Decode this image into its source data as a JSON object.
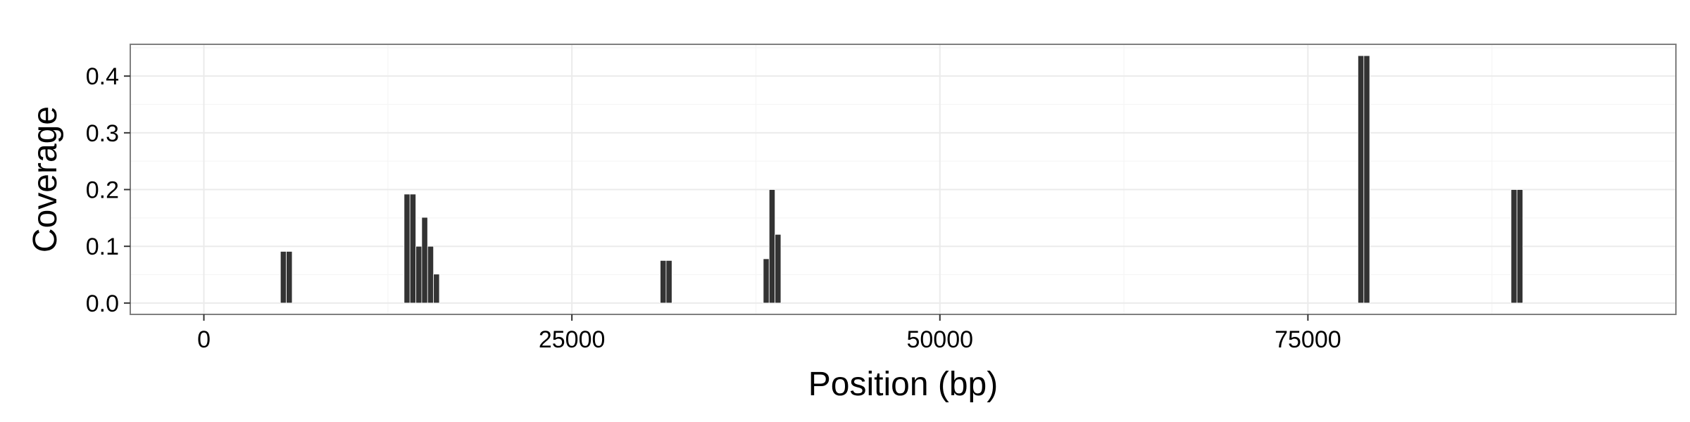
{
  "chart_data": {
    "type": "bar",
    "title": "",
    "xlabel": "Position (bp)",
    "ylabel": "Coverage",
    "xlim": [
      -5000,
      100000
    ],
    "ylim": [
      -0.02,
      0.456
    ],
    "x_ticks": [
      {
        "value": 0,
        "label": "0"
      },
      {
        "value": 25000,
        "label": "25000"
      },
      {
        "value": 50000,
        "label": "50000"
      },
      {
        "value": 75000,
        "label": "75000"
      }
    ],
    "y_ticks": [
      {
        "value": 0.0,
        "label": "0.0"
      },
      {
        "value": 0.1,
        "label": "0.1"
      },
      {
        "value": 0.2,
        "label": "0.2"
      },
      {
        "value": 0.3,
        "label": "0.3"
      },
      {
        "value": 0.4,
        "label": "0.4"
      }
    ],
    "grid": true,
    "bar_color": "#333333",
    "panel_background": "#ffffff",
    "grid_color": "#ebebeb",
    "bin_width": 400,
    "bars": [
      {
        "x": 5400,
        "y": 0.091
      },
      {
        "x": 5800,
        "y": 0.091
      },
      {
        "x": 13800,
        "y": 0.192
      },
      {
        "x": 14200,
        "y": 0.192
      },
      {
        "x": 14600,
        "y": 0.1
      },
      {
        "x": 15000,
        "y": 0.151
      },
      {
        "x": 15400,
        "y": 0.1
      },
      {
        "x": 15800,
        "y": 0.051
      },
      {
        "x": 31200,
        "y": 0.075
      },
      {
        "x": 31600,
        "y": 0.075
      },
      {
        "x": 38200,
        "y": 0.078
      },
      {
        "x": 38600,
        "y": 0.2
      },
      {
        "x": 39000,
        "y": 0.121
      },
      {
        "x": 78600,
        "y": 0.436
      },
      {
        "x": 79000,
        "y": 0.436
      },
      {
        "x": 89000,
        "y": 0.2
      },
      {
        "x": 89400,
        "y": 0.2
      }
    ]
  }
}
